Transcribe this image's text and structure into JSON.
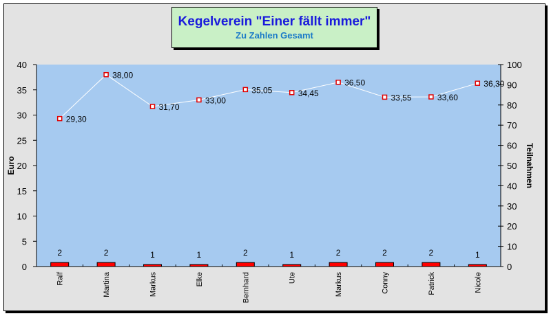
{
  "title": "Kegelverein \"Einer fällt immer\"",
  "subtitle": "Zu Zahlen Gesamt",
  "colors": {
    "frame_bg": "#e3e3e3",
    "plot_bg": "#a6caf0",
    "title_bg": "#c9f0c6",
    "title_color": "#1a1adc",
    "subtitle_color": "#1a7ac8",
    "bar_fill": "#ff0000",
    "line_color": "#ffffff",
    "marker_stroke": "#e00000"
  },
  "chart_data": {
    "type": "bar+line",
    "title": "Kegelverein \"Einer fällt immer\"",
    "subtitle": "Zu Zahlen Gesamt",
    "categories": [
      "Ralf",
      "Martina",
      "Markus",
      "Elke",
      "Bernhard",
      "Ute",
      "Markus",
      "Conny",
      "Patrick",
      "Nicole"
    ],
    "series": [
      {
        "name": "Zu Zahlen (Euro)",
        "type": "line",
        "axis": "left",
        "values": [
          29.3,
          38.0,
          31.7,
          33.0,
          35.05,
          34.45,
          36.5,
          33.55,
          33.6,
          36.3
        ],
        "labels": [
          "29,30",
          "38,00",
          "31,70",
          "33,00",
          "35,05",
          "34,45",
          "36,50",
          "33,55",
          "33,60",
          "36,30"
        ]
      },
      {
        "name": "Teilnahmen",
        "type": "bar",
        "axis": "right",
        "values": [
          2,
          2,
          1,
          1,
          2,
          1,
          2,
          2,
          2,
          1
        ],
        "labels": [
          "2",
          "2",
          "1",
          "1",
          "2",
          "1",
          "2",
          "2",
          "2",
          "1"
        ]
      }
    ],
    "ylabel": "Euro",
    "ylim": [
      0,
      40
    ],
    "yticks": [
      "0",
      "5",
      "10",
      "15",
      "20",
      "25",
      "30",
      "35",
      "40"
    ],
    "y2label": "Teilnahmen",
    "y2lim": [
      0,
      100
    ],
    "y2ticks": [
      "0",
      "10",
      "20",
      "30",
      "40",
      "50",
      "60",
      "70",
      "80",
      "90",
      "100"
    ],
    "xlabel": "",
    "grid": false,
    "legend": "none"
  }
}
